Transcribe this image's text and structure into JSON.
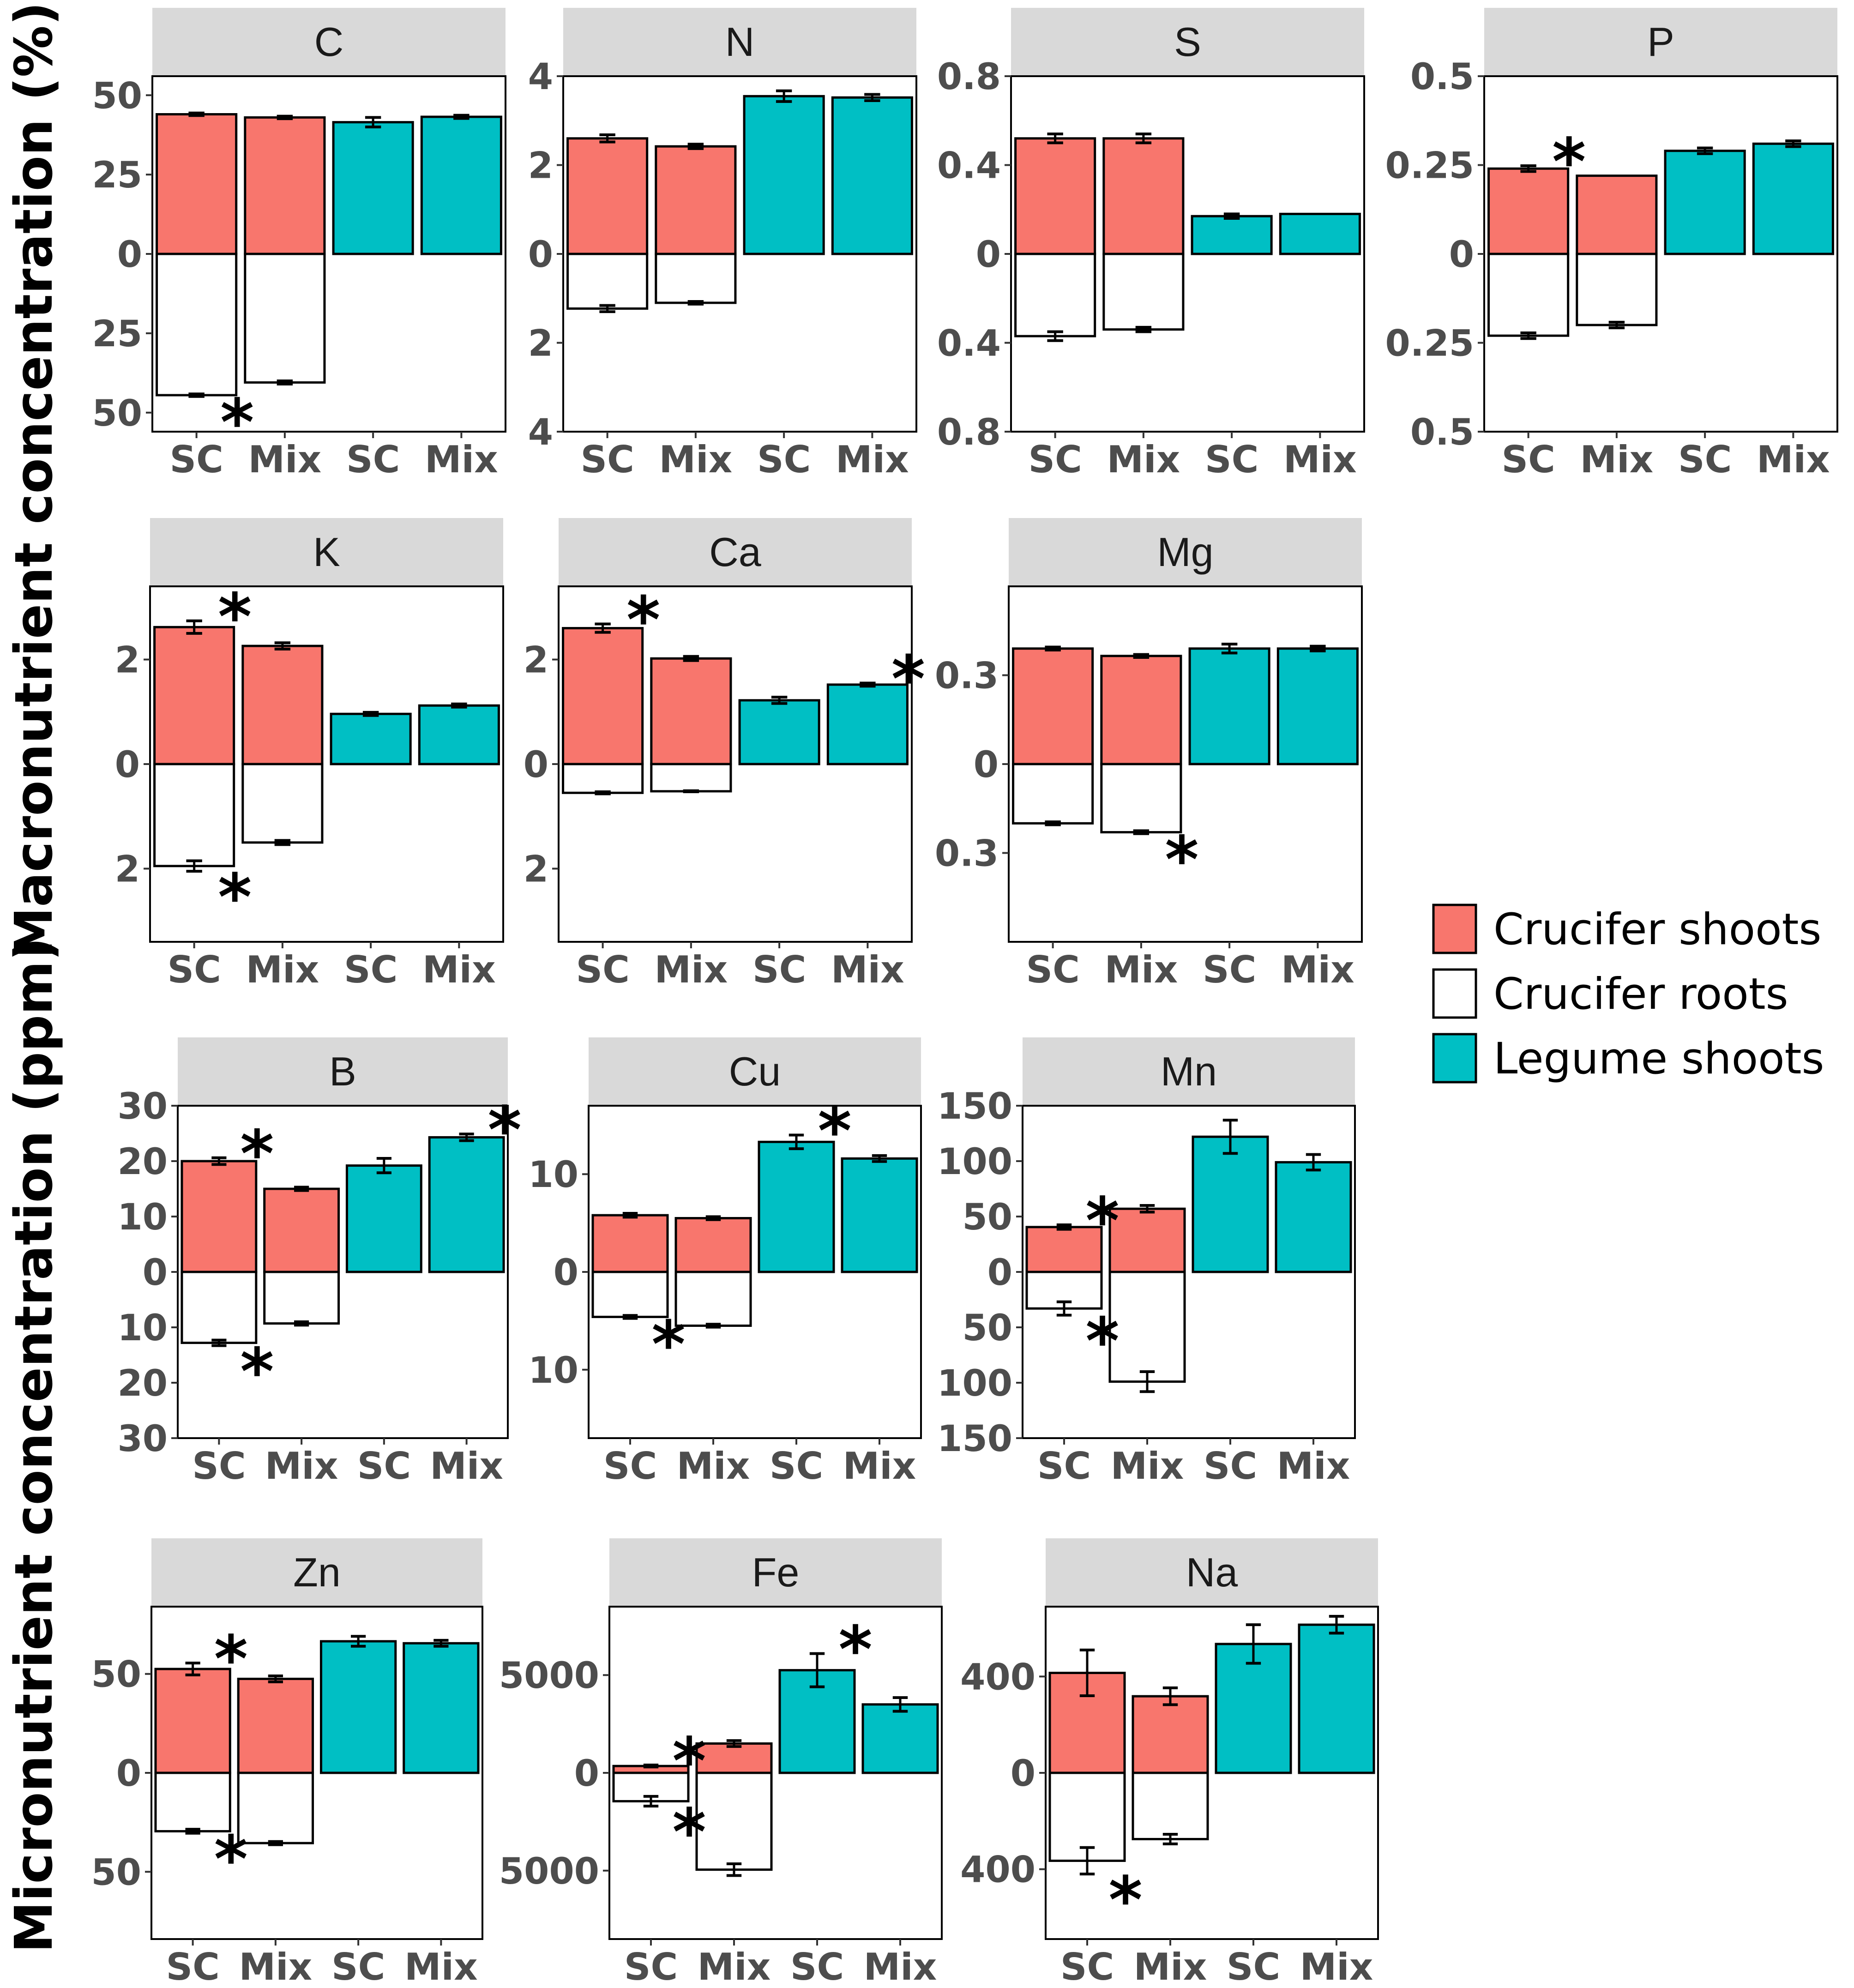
{
  "chart_data": {
    "type": "bar",
    "categories": [
      "SC",
      "Mix",
      "SC",
      "Mix"
    ],
    "y_labels": {
      "macro": "Macronutrient concentration (%)",
      "micro": "Micronutrient concentration (ppm)"
    },
    "legend": [
      {
        "key": "crucifer_shoots",
        "label": "Crucifer shoots",
        "color": "#F8766D"
      },
      {
        "key": "crucifer_roots",
        "label": "Crucifer roots",
        "color": "#FFFFFF"
      },
      {
        "key": "legume_shoots",
        "label": "Legume shoots",
        "color": "#00BFC4"
      }
    ],
    "colors": {
      "crucifer_shoots": "#F8766D",
      "crucifer_roots": "#FFFFFF",
      "legume_shoots": "#00BFC4",
      "strip": "#D9D9D9"
    },
    "panels": [
      {
        "title": "C",
        "group": "macro",
        "ylim": [
          -56,
          56
        ],
        "ticks": [
          {
            "v": 50,
            "t": "50"
          },
          {
            "v": 25,
            "t": "25"
          },
          {
            "v": 0,
            "t": "0"
          },
          {
            "v": -25,
            "t": "25"
          },
          {
            "v": -50,
            "t": "50"
          }
        ],
        "shoots": [
          44.0,
          43.0,
          41.5,
          43.2
        ],
        "shoot_err": [
          0.4,
          0.4,
          1.5,
          0.5
        ],
        "roots": [
          44.5,
          40.5
        ],
        "root_err": [
          0.4,
          0.5
        ],
        "sig": [
          {
            "pos": "root",
            "bar": 0
          }
        ]
      },
      {
        "title": "N",
        "group": "macro",
        "ylim": [
          -4,
          4
        ],
        "ticks": [
          {
            "v": 4,
            "t": "4"
          },
          {
            "v": 2,
            "t": "2"
          },
          {
            "v": 0,
            "t": "0"
          },
          {
            "v": -2,
            "t": "2"
          },
          {
            "v": -4,
            "t": "4"
          }
        ],
        "shoots": [
          2.6,
          2.42,
          3.55,
          3.52
        ],
        "shoot_err": [
          0.08,
          0.05,
          0.12,
          0.07
        ],
        "roots": [
          1.23,
          1.1
        ],
        "root_err": [
          0.07,
          0.03
        ],
        "sig": []
      },
      {
        "title": "S",
        "group": "macro",
        "ylim": [
          -0.8,
          0.8
        ],
        "ticks": [
          {
            "v": 0.8,
            "t": "0.8"
          },
          {
            "v": 0.4,
            "t": "0.4"
          },
          {
            "v": 0,
            "t": "0"
          },
          {
            "v": -0.4,
            "t": "0.4"
          },
          {
            "v": -0.8,
            "t": "0.8"
          }
        ],
        "shoots": [
          0.52,
          0.52,
          0.17,
          0.18
        ],
        "shoot_err": [
          0.02,
          0.02,
          0.01,
          0.0
        ],
        "roots": [
          0.37,
          0.34
        ],
        "root_err": [
          0.02,
          0.01
        ],
        "sig": []
      },
      {
        "title": "P",
        "group": "macro",
        "ylim": [
          -0.5,
          0.5
        ],
        "ticks": [
          {
            "v": 0.5,
            "t": "0.5"
          },
          {
            "v": 0.25,
            "t": "0.25"
          },
          {
            "v": 0,
            "t": "0"
          },
          {
            "v": -0.25,
            "t": "0.25"
          },
          {
            "v": -0.5,
            "t": "0.5"
          }
        ],
        "shoots": [
          0.24,
          0.22,
          0.29,
          0.31
        ],
        "shoot_err": [
          0.008,
          0.0,
          0.008,
          0.008
        ],
        "roots": [
          0.23,
          0.2
        ],
        "root_err": [
          0.008,
          0.008
        ],
        "sig": [
          {
            "pos": "shoot",
            "bar": 0
          }
        ]
      },
      {
        "title": "K",
        "group": "macro",
        "ylim": [
          -3.4,
          3.4
        ],
        "ticks": [
          {
            "v": 2,
            "t": "2"
          },
          {
            "v": 0,
            "t": "0"
          },
          {
            "v": -2,
            "t": "2"
          }
        ],
        "shoots": [
          2.62,
          2.26,
          0.96,
          1.12
        ],
        "shoot_err": [
          0.12,
          0.06,
          0.03,
          0.03
        ],
        "roots": [
          1.95,
          1.5
        ],
        "root_err": [
          0.1,
          0.04
        ],
        "sig": [
          {
            "pos": "shoot",
            "bar": 0
          },
          {
            "pos": "root",
            "bar": 0
          }
        ]
      },
      {
        "title": "Ca",
        "group": "macro",
        "ylim": [
          -3.4,
          3.4
        ],
        "ticks": [
          {
            "v": 2,
            "t": "2"
          },
          {
            "v": 0,
            "t": "0"
          },
          {
            "v": -2,
            "t": "2"
          }
        ],
        "shoots": [
          2.6,
          2.02,
          1.22,
          1.52
        ],
        "shoot_err": [
          0.08,
          0.04,
          0.06,
          0.03
        ],
        "roots": [
          0.55,
          0.52
        ],
        "root_err": [
          0.02,
          0.01
        ],
        "sig": [
          {
            "pos": "shoot",
            "bar": 0
          },
          {
            "pos": "shoot",
            "bar": 3
          }
        ]
      },
      {
        "title": "Mg",
        "group": "macro",
        "ylim": [
          -0.6,
          0.6
        ],
        "ticks": [
          {
            "v": 0.3,
            "t": "0.3"
          },
          {
            "v": 0,
            "t": "0"
          },
          {
            "v": -0.3,
            "t": "0.3"
          }
        ],
        "shoots": [
          0.39,
          0.365,
          0.39,
          0.39
        ],
        "shoot_err": [
          0.005,
          0.005,
          0.015,
          0.008
        ],
        "roots": [
          0.2,
          0.23
        ],
        "root_err": [
          0.005,
          0.005
        ],
        "sig": [
          {
            "pos": "root",
            "bar": 1
          }
        ]
      },
      {
        "title": "B",
        "group": "micro",
        "ylim": [
          -30,
          30
        ],
        "ticks": [
          {
            "v": 30,
            "t": "30"
          },
          {
            "v": 20,
            "t": "20"
          },
          {
            "v": 10,
            "t": "10"
          },
          {
            "v": 0,
            "t": "0"
          },
          {
            "v": -10,
            "t": "10"
          },
          {
            "v": -20,
            "t": "20"
          },
          {
            "v": -30,
            "t": "30"
          }
        ],
        "shoots": [
          20.0,
          15.0,
          19.2,
          24.3
        ],
        "shoot_err": [
          0.6,
          0.3,
          1.3,
          0.6
        ],
        "roots": [
          12.8,
          9.3
        ],
        "root_err": [
          0.5,
          0.3
        ],
        "sig": [
          {
            "pos": "shoot",
            "bar": 0
          },
          {
            "pos": "root",
            "bar": 0
          },
          {
            "pos": "shoot",
            "bar": 3
          }
        ]
      },
      {
        "title": "Cu",
        "group": "micro",
        "ylim": [
          -17,
          17
        ],
        "ticks": [
          {
            "v": 10,
            "t": "10"
          },
          {
            "v": 0,
            "t": "0"
          },
          {
            "v": -10,
            "t": "10"
          }
        ],
        "shoots": [
          5.8,
          5.5,
          13.3,
          11.6
        ],
        "shoot_err": [
          0.2,
          0.15,
          0.7,
          0.3
        ],
        "roots": [
          4.6,
          5.5
        ],
        "root_err": [
          0.15,
          0.15
        ],
        "sig": [
          {
            "pos": "root",
            "bar": 0
          },
          {
            "pos": "shoot",
            "bar": 2
          }
        ]
      },
      {
        "title": "Mn",
        "group": "micro",
        "ylim": [
          -150,
          150
        ],
        "ticks": [
          {
            "v": 150,
            "t": "150"
          },
          {
            "v": 100,
            "t": "100"
          },
          {
            "v": 50,
            "t": "50"
          },
          {
            "v": 0,
            "t": "0"
          },
          {
            "v": -50,
            "t": "50"
          },
          {
            "v": -100,
            "t": "100"
          },
          {
            "v": -150,
            "t": "150"
          }
        ],
        "shoots": [
          40.5,
          57.0,
          122.0,
          99.0
        ],
        "shoot_err": [
          2.0,
          3.0,
          15.0,
          7.0
        ],
        "roots": [
          33.0,
          99.0
        ],
        "root_err": [
          6.0,
          9.0
        ],
        "sig": [
          {
            "pos": "shoot",
            "bar": 0
          },
          {
            "pos": "root",
            "bar": 0
          }
        ]
      },
      {
        "title": "Zn",
        "group": "micro",
        "ylim": [
          -84,
          84
        ],
        "ticks": [
          {
            "v": 50,
            "t": "50"
          },
          {
            "v": 0,
            "t": "0"
          },
          {
            "v": -50,
            "t": "50"
          }
        ],
        "shoots": [
          52.5,
          47.5,
          66.5,
          65.5
        ],
        "shoot_err": [
          3.0,
          1.5,
          2.5,
          1.5
        ],
        "roots": [
          29.5,
          35.5
        ],
        "root_err": [
          1.0,
          0.8
        ],
        "sig": [
          {
            "pos": "shoot",
            "bar": 0
          },
          {
            "pos": "root",
            "bar": 0
          }
        ]
      },
      {
        "title": "Fe",
        "group": "micro",
        "ylim": [
          -8500,
          8500
        ],
        "ticks": [
          {
            "v": 5000,
            "t": "5000"
          },
          {
            "v": 0,
            "t": "0"
          },
          {
            "v": -5000,
            "t": "5000"
          }
        ],
        "shoots": [
          350,
          1500,
          5250,
          3500
        ],
        "shoot_err": [
          50,
          150,
          850,
          350
        ],
        "roots": [
          1450,
          4950
        ],
        "root_err": [
          250,
          300
        ],
        "sig": [
          {
            "pos": "shoot",
            "bar": 0
          },
          {
            "pos": "root",
            "bar": 0
          },
          {
            "pos": "shoot",
            "bar": 2
          }
        ]
      },
      {
        "title": "Na",
        "group": "micro",
        "ylim": [
          -690,
          690
        ],
        "ticks": [
          {
            "v": 400,
            "t": "400"
          },
          {
            "v": 0,
            "t": "0"
          },
          {
            "v": -400,
            "t": "400"
          }
        ],
        "shoots": [
          415,
          318,
          535,
          615
        ],
        "shoot_err": [
          95,
          35,
          80,
          35
        ],
        "roots": [
          365,
          275
        ],
        "root_err": [
          55,
          20
        ],
        "sig": [
          {
            "pos": "root",
            "bar": 0
          }
        ]
      }
    ]
  }
}
